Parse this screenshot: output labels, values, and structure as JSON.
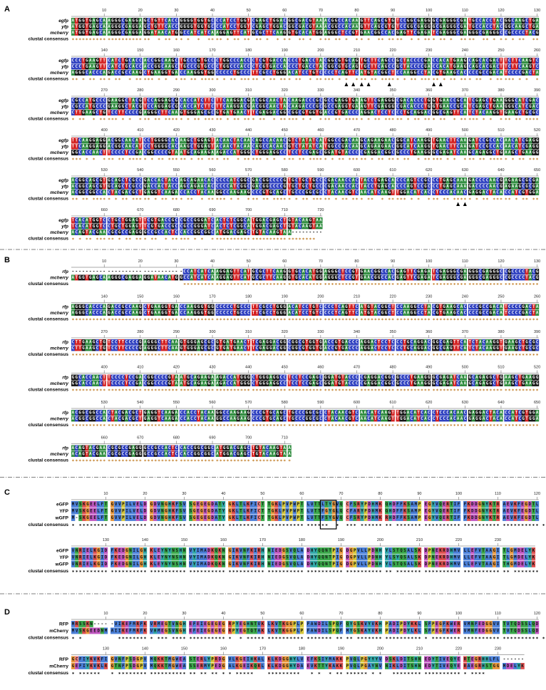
{
  "panels": [
    {
      "label": "A",
      "names": [
        "egfp",
        "yfp",
        "mcherry",
        "clustal consensus"
      ],
      "blocks": [
        {
          "ruler": [
            10,
            20,
            30,
            40,
            50,
            60,
            70,
            80,
            90,
            100,
            110,
            120,
            130
          ],
          "rows": [
            "ATGGTGAGCAAGGGCGAGGAGCTGTTCACCGGGGTGGTGCCCATCCTGGTCGAGCTGGACGGCGACGTAAACGGCCACAAGTTCAGCGTGTCCGGCGAGGGCGAGGGCGATGCCACCTACGGCAAGCTGA",
            "ATGGTGAGCAAGGGCGAGGAGCTGTTCACCGGGGTGGTGCCCATCCTGGTCGAGCTGGACGGCGACGTAAACGGCCACAAGTTCAGCGTGTCCGGCGAGGGCGAGGGCGATGCCACCTACGGCAAGCTGA",
            "ATGGTGAGCAAGGGCGAGGAGGATAACATGGCCATCATCAAGGAGTTCATGCGCTTCAAGGTGCACATGGAGGGCTCCGTGAACGGCCACGAGTTCGAGATCGAGGGCGAGGGCGAGGGCCGCCCCTACG",
            "**********************  * ** ** *  *  **** * ** ** ** *  * **  ** *  *** ** *  ** *  ** ****  * * *** ** *  ****  ** * ** * **  **"
          ]
        },
        {
          "ruler": [
            140,
            150,
            160,
            170,
            180,
            190,
            200,
            210,
            220,
            230,
            240,
            250,
            260
          ],
          "rows": [
            "CCCTGAAGTTCATCTGCACCACCGGCAAGCTGCCCGTGCCCTGGCCCACCCTCGTGACCACCCTGACCTACGGCGTGCAGTGCTTCAGCCGCTACCCCGACCACATGAAGCAGCACGACTTCTTCAAGTC",
            "CCCTGAAGTTCATCTGCACCACCGGCAAGCTGCCCGTGCCCTGGCCCACCCTCGTGACCACCCTGACCTACGGCGTGCAGTGCTTCAGCCGCTACCCCGACCACATGAAGCAGCACGACTTCTTCAAGTC",
            "AGGGCACCCAGACCGCCAAGCTGAAGGTGACCAAGGGTGGCCCCCTGCCCTTCGCCTGGGACATCCTGTCCCCTCAGTTCATGTACGGCTCCAAGGCCTACGTGAAGCACCCCGCCGACATCCCCGACTA",
            "** * ** *** **  * ***** * *  *** ** ***** * ** ***** * ** *** **  * ***** * *  *** ** ***** * ** ***** * ** *** **  * ***** * *  *"
          ]
        },
        {
          "ruler": [
            270,
            280,
            290,
            300,
            310,
            320,
            330,
            340,
            350,
            360,
            370,
            380,
            390
          ],
          "rows": [
            "CGCCATGCCCGAAGGCTACGTCCAGGAGCGCACCATCTTCTTCAAGGACGACGGCAACTACAAGACCCGCGCCGAGGTGAAGTTCGAGGGCGACACCCTGGTGAACCGCATCGAGCTGAAGGGCATCGAC",
            "CGCCATGCCCGAAGGCTACGTCCAGGAGCGCACCATCTTCTTCAAGGACGACGGCAACTACAAGACCCGCGCCGAGGTGAAGTTCGAGGGCGACACCCTGGTGAACCGCATCGAGCTGAAGGGCATCGAC",
            "CTTGAAGCTGTCCTTCCCCGAGGGCTTCAAGTGGGAGCGCGTGATGAACTTCGAGGACGGCGGCGTGGTGACCGTGACCCAGGACTCCTCCCTGCAGGACGGCGAGTTCATCTACAAGGTGAAGCTGCGC",
            "* **  * ***** * *  *** ** ***** * ** ***** * ** *** **  * ***** * *  *** ** ***** * ** ***** * ** *** **  * ***** * *  *** ** ****"
          ]
        },
        {
          "ruler": [
            400,
            410,
            420,
            430,
            440,
            450,
            460,
            470,
            480,
            490,
            500,
            510,
            520
          ],
          "rows": [
            "TTCAAGGAGGACGGCAACATCCTGGGGCACAAGCTGGAGTACAACTACAACAGCCACAACGTCTATATCATGGCCGACAAGCAGAAGAACGGCATCAAGGTGAACTTCAAGATCCGCCACAACATCGAGG",
            "TTCAAGGAGGACGGCAACATCCTGGGGCACAAGCTGGAGTACAACTACAACAGCCACAACGTCTATATCATGGCCGACAAGCAGAAGAACGGCATCAAGGTGAACTTCAAGATCCGCCACAACATCGAGG",
            "GGCACCAACTTCCCCTCCGACGGCCCCGTAATGCAGAAGAAGACCATGGGCTGGGAGGCCTCCTCCGAGCGGATGTACCCCGAGGACGGCGCCCTGAAGGGCGAGATCAAGCAGAGGCTGAAGCTGAAGG",
            "*** * *  *** ** ***** * ** ***** * ** *** **  * ***** * *  *** ** ***** * ** ***** * ** *** **  * ***** * *  *** ** ***** * ** ***"
          ]
        },
        {
          "ruler": [
            530,
            540,
            550,
            560,
            570,
            580,
            590,
            600,
            610,
            620,
            630,
            640,
            650
          ],
          "rows": [
            "ACGGCAGCGTGCAGCTCGCCGACCACTACCAGCAGAACACCCCCATCGGCGACGGCCCCGTGCTGCTGCCCGACAACCACTACCTGAGCACCCAGTCCGCCCTGAGCAAAGACCCCAACGAGAAGCGCGA",
            "ACGGCAGCGTGCAGCTCGCCGACCACTACCAGCAGAACACCCCCATCGGCGACGGCCCCGTGCTGCTGCCCGACAACCACTACCTGAGCACCCAGTCCGCCCTGAGCAAAGACCCCAACGAGAAGCGCGA",
            "ACGGCGGCCACTACGACGCTGAGGTCAAGACCACCTACAAGGCCAAGAAGCCCGTGCAGCTGCCCGGCGCCTACAACGTCAACATCAAGTTGGACATCACCTCCCACAACGAGGACTACACCATCGTGGA",
            "** ** ***** * ** ***** * ** *** **  * ***** * *  *** ** ***** * ** ***** * ** *** **  * ***** * *  *** ** ***** * ** ***** * ** **"
          ]
        },
        {
          "ruler": [
            660,
            670,
            680,
            690,
            700,
            710,
            720
          ],
          "rows": [
            "TCACATGGTCCTGCTGGAGTTCGTGACCGCCGCCGGGATCACTCTCGGCATGGACGAGCTGTACAAGTAA",
            "TCACATGGTCCTGCTGGAGTTCGTGACCGCCGCCGGGATCACTCTCGGCATGGACGAGCTGTACAAGTAA",
            "ACAGTACGAACGCGCCGAGGGCCGCCACTCCACCGGCGGCATGGACGAGCTGTACAAGTAA---------",
            "* * ** ***** * ** *** **  * ***** * *  *****************************   "
          ]
        }
      ]
    },
    {
      "label": "B",
      "names": [
        "rfp",
        "mcherry",
        "clustal consensus"
      ],
      "blocks": [
        {
          "ruler": [
            10,
            20,
            30,
            40,
            50,
            60,
            70,
            80,
            90,
            100,
            110,
            120,
            130
          ],
          "rows": [
            "-------------------------------CCATCATCAAGGAGTTCATGCGCTTCAAGGTGCACATGGAGGGCTCCGTGAACGGCCACGAGTTCGAGATCGAGGGCGAGGGCGAGGGCCGCCCCTACG",
            "ATGGTGAGCAAGGGCGAGGAGGATAACATGGCCATCATCAAGGAGTTCATGCGCTTCAAGGTGCACATGGAGGGCTCCGTGAACGGCCACGAGTTCGAGATCGAGGGCGAGGGCGAGGGCCGCCCCTACG",
            "                               ***************************************************************************************************"
          ]
        },
        {
          "ruler": [
            140,
            150,
            160,
            170,
            180,
            190,
            200,
            210,
            220,
            230,
            240,
            250,
            260
          ],
          "rows": [
            "AGGGCACCCAGACCGCCAAGCTGAAGGTGACCAAGGGTGGCCCCCTGCCCTTCGCCTGGGACATCCTGTCCCCTCAGTTCATGTACGGCTCCAAGGCCTACGTGAAGCACCCCGCCGACATCCCCGACTA",
            "AGGGCACCCAGACCGCCAAGCTGAAGGTGACCAAGGGTGGCCCCCTGCCCTTCGCCTGGGACATCCTGTCCCCTCAGTTCATGTACGGCTCCAAGGCCTACGTGAAGCACCCCGCCGACATCCCCGACTA",
            "**********************************************************************************************************************************"
          ]
        },
        {
          "ruler": [
            270,
            280,
            290,
            300,
            310,
            320,
            330,
            340,
            350,
            360,
            370,
            380,
            390
          ],
          "rows": [
            "CTTGAAGCTGTCCTTCCCCGAGGGCTTCAAGTGGGAGCGCGTGATGAACTTCGAGGACGGCGGCGTGGTGACCGTGACCCAGGACTCCTCCCTGCAGGACGGCGAGTTCATCTACAAGGTGAAGCTGCGC",
            "CTTGAAGCTGTCCTTCCCCGAGGGCTTCAAGTGGGAGCGCGTGATGAACTTCGAGGACGGCGGCGTGGTGACCGTGACCCAGGACTCCTCCCTGCAGGACGGCGAGTTCATCTACAAGGTGAAGCTGCGC",
            "**********************************************************************************************************************************"
          ]
        },
        {
          "ruler": [
            400,
            410,
            420,
            430,
            440,
            450,
            460,
            470,
            480,
            490,
            500,
            510,
            520
          ],
          "rows": [
            "GGCACCAACTTCCCCTCCGACGGCCCCGTAATGCAGAAGAAGACCATGGGCTGGGAGGCCTCCTCCGAGCGGATGTACCCCGAGGACGGCGCCCTGAAGGGCGAGATCAAGCAGAGGCTGAAGCTGAAGG",
            "GGCACCAACTTCCCCTCCGACGGCCCCGTAATGCAGAAGAAGACCATGGGCTGGGAGGCCTCCTCCGAGCGGATGTACCCCGAGGACGGCGCCCTGAAGGGCGAGATCAAGCAGAGGCTGAAGCTGAAGG",
            "**********************************************************************************************************************************"
          ]
        },
        {
          "ruler": [
            530,
            540,
            550,
            560,
            570,
            580,
            590,
            600,
            610,
            620,
            630,
            640,
            650
          ],
          "rows": [
            "ACGGCGGCCACTACGACGCTGAGGTCAAGACCACCTACAAGGCCAAGAAGCCCGTGCAGCTGCCCGGCGCCTACAACGTCAACATCAAGTTGGACATCACCTCCCACAACGAGGACTACACCATCGTGGA",
            "ACGGCGGCCACTACGACGCTGAGGTCAAGACCACCTACAAGGCCAAGAAGCCCGTGCAGCTGCCCGGCGCCTACAACGTCAACATCAAGTTGGACATCACCTCCCACAACGAGGACTACACCATCGTGGA",
            "**********************************************************************************************************************************"
          ]
        },
        {
          "ruler": [
            660,
            670,
            680,
            690,
            700,
            710
          ],
          "rows": [
            "ACAGTACGAACGCGCCGAGGGCCGCCACTCCACCGGCGGCATGGACGAGCTGTACAAGTAA",
            "ACAGTACGAACGCGCCGAGGGCCGCCACTCCACCGGCGGCATGGACGAGCTGTACAAGTAA",
            "*************************************************************"
          ]
        }
      ]
    },
    {
      "label": "C",
      "names": [
        "eGFP",
        "YFP",
        "wGFP",
        "clustal consensus"
      ],
      "blocks": [
        {
          "ruler": [
            10,
            20,
            30,
            40,
            50,
            60,
            70,
            80,
            90,
            100,
            110,
            120
          ],
          "rows": [
            "MVSKGEELFTGVVPILVELDGDVNGHKFSVSGEGEGDATYGKLTLKFICTTGKLPVPWPTLVTTLTYGVQCFSRYPDHMKQHDFFKSAMPEGYVQERTIFFKDDGNYKTRAEVKFEGDTL",
            "MVSKGEELFTGVVPILVELDGDVNGHKFSVSGEGEGDATYGKLTLKFICTTGKLPVPWPTLVTTFGYGLQCFARYPDHMKQHDFFKSAMPEGYVQERTIFFKDDGNYKTRAEVKFEGDTL",
            "M-SKGEELFTGVVPILVELDGDVNGHKFSVSGEGEGDATYGKLTLKFICTTGKLPVPWPTLVTTFSYGVQCFSRYPDHMKRHDFFKSAMPEGYVQERTIFFKDDGNYKTRAEVKFEGDTL",
            "* ****************************************************************  * *** ******** ***************************************"
          ]
        },
        {
          "ruler": [
            130,
            140,
            150,
            160,
            170,
            180,
            190,
            200,
            210,
            220,
            230
          ],
          "rows": [
            "VNRIELKGIDFKEDGNILGHKLEYNYNSHNVYIMADKQKNGIKVNFKIRHNIEDGSVQLADHYQQNTPIGDGPVLLPDNHYLSTQSALSKDPNEKRDHMVLLEFVTAAGITLGMDELYK",
            "VNRIELKGIDFKEDGNILGHKLEYNYNSHNVYIMADKQKNGIKVNFKIRHNIEDGSVQLADHYQQNTPIGDGPVLLPDNHYLSYQSALSKDPNEKRDHMVLLEFVTAAGITLGMDELYK",
            "VNRIELKGIDFKEDGNILGHKLEYNYNSHNVYIMADKQKNGIKVNFKIRHNIEDGSVQLADHYQQNTPIGDGPVLLPDNHYLSTQSALSKDPNEKRDHMVLLEFVTAAGITHGMDELYK",
            "********************************************************************************** ***************************** *******"
          ]
        }
      ]
    },
    {
      "label": "D",
      "names": [
        "RFP",
        "mCherry",
        "clustal consensus"
      ],
      "blocks": [
        {
          "ruler": [
            10,
            20,
            30,
            40,
            50,
            60,
            70,
            80,
            90,
            100,
            110,
            120
          ],
          "rows": [
            "MRSSKN-----VIKEFMRFKVRMEGTVNGHEFEIEGEGEGRPYEGHNTVKLKVTKGGPLPFAWDILSPQFQYGSKVYVKHPADIPDYKKLSFPEGFKWERVMNFEDGGVVTVTQDSSLQD",
            "MVSKGEEDNMAIIKEFMRFKVHMEGSVNGHEFEIEGEGEGRPYEGTQTAKLKVTKGGPLPFAWDILSPQFMYGSKAYVKHPADIPDYLKLSFPEGFKWERVMNFEDGGVVTVTQDSSLQD",
            "* *         ********* *** ***************  * ********************** **** ****************** ********************************"
          ]
        },
        {
          "ruler": [
            130,
            140,
            150,
            160,
            170,
            180,
            190,
            200,
            210,
            220,
            230
          ],
          "rows": [
            "GCFIYKVKFIGVNFPSDGPVMQKKTMGWEASTERLYPRDGVLKGEIHKALKLKDGGHYLVEFKSIYMAKKPVQLPGYYYVDSKLDITSHNEDYTIVEQYERTEGRHHLFL------",
            "GEFIYKVKLRGTNFPSDGPVMQKKTMGWEASSERMYPEDGALKGEIKQRLKLKDGGHYDAEVKTTYKAKKPVQLPGAYNVNIKLDITSHNEDYTIVEQYERAEGRHSTGGMDELYK",
            "* ******  * ******************** ** ** ** *****   *********  * *  * ******** * *  ******************* ****          "
          ]
        }
      ]
    }
  ]
}
